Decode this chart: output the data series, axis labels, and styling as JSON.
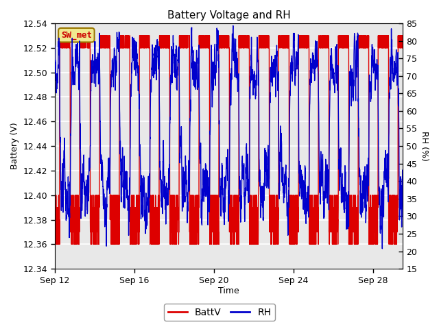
{
  "title": "Battery Voltage and RH",
  "xlabel": "Time",
  "ylabel_left": "Battery (V)",
  "ylabel_right": "RH (%)",
  "annotation": "SW_met",
  "ylim_left": [
    12.34,
    12.54
  ],
  "ylim_right": [
    15,
    85
  ],
  "yticks_left": [
    12.34,
    12.36,
    12.38,
    12.4,
    12.42,
    12.44,
    12.46,
    12.48,
    12.5,
    12.52,
    12.54
  ],
  "yticks_right": [
    15,
    20,
    25,
    30,
    35,
    40,
    45,
    50,
    55,
    60,
    65,
    70,
    75,
    80,
    85
  ],
  "xtick_labels": [
    "Sep 12",
    "Sep 16",
    "Sep 20",
    "Sep 24",
    "Sep 28"
  ],
  "xtick_positions": [
    0,
    4,
    8,
    12,
    16
  ],
  "xlim": [
    0,
    17.5
  ],
  "color_batt": "#dd0000",
  "color_rh": "#0000cc",
  "legend_items": [
    "BattV",
    "RH"
  ],
  "bg_outer": "#ffffff",
  "bg_plot": "#e8e8e8",
  "grid_color": "#d0d0d0",
  "title_fontsize": 11,
  "axis_label_fontsize": 9,
  "tick_fontsize": 9,
  "annotation_fontsize": 9,
  "annotation_color": "#cc0000",
  "annotation_bg": "#f0e890",
  "annotation_edge": "#997700",
  "linewidth_data": 1.0,
  "legend_fontsize": 10
}
